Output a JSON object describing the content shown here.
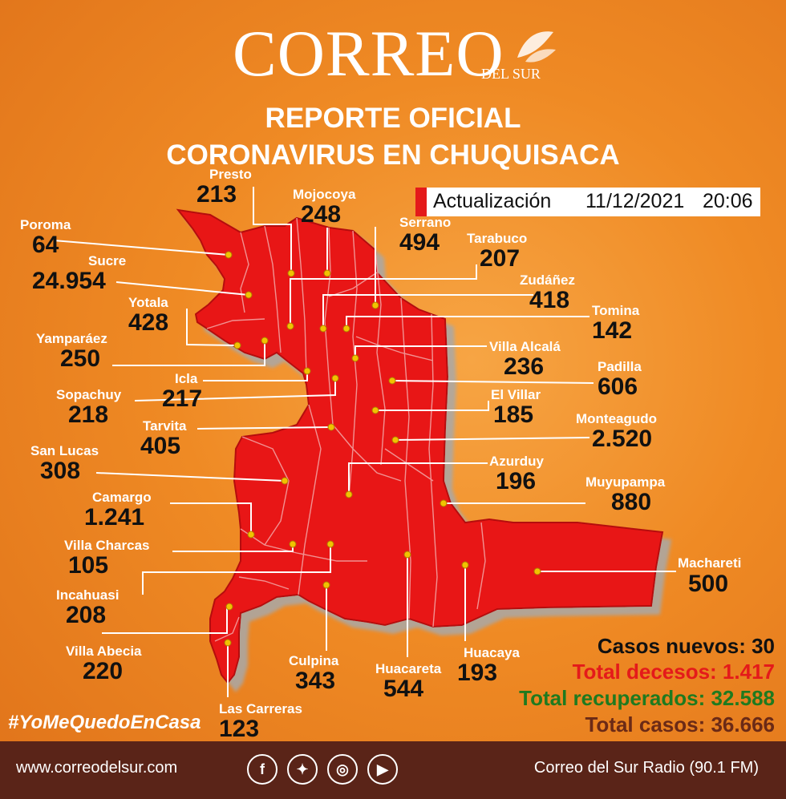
{
  "brand": {
    "name": "CORREO",
    "sub": "DEL SUR"
  },
  "title": {
    "line1": "REPORTE OFICIAL",
    "line2": "CORONAVIRUS EN CHUQUISACA"
  },
  "update": {
    "label": "Actualización",
    "date": "11/12/2021",
    "time": "20:06"
  },
  "colors": {
    "map": "#e81515",
    "map_border": "#b50e0e",
    "background": "#ef8a24",
    "footer": "#5a2418"
  },
  "municipalities": [
    {
      "name": "Presto",
      "value": "213"
    },
    {
      "name": "Mojocoya",
      "value": "248"
    },
    {
      "name": "Serrano",
      "value": "494"
    },
    {
      "name": "Tarabuco",
      "value": "207"
    },
    {
      "name": "Poroma",
      "value": "64"
    },
    {
      "name": "Sucre",
      "value": "24.954"
    },
    {
      "name": "Zudáñez",
      "value": "418"
    },
    {
      "name": "Yotala",
      "value": "428"
    },
    {
      "name": "Tomina",
      "value": "142"
    },
    {
      "name": "Yamparáez",
      "value": "250"
    },
    {
      "name": "Villa Alcalá",
      "value": "236"
    },
    {
      "name": "Padilla",
      "value": "606"
    },
    {
      "name": "Icla",
      "value": "217"
    },
    {
      "name": "Sopachuy",
      "value": "218"
    },
    {
      "name": "El Villar",
      "value": "185"
    },
    {
      "name": "Tarvita",
      "value": "405"
    },
    {
      "name": "Monteagudo",
      "value": "2.520"
    },
    {
      "name": "San Lucas",
      "value": "308"
    },
    {
      "name": "Azurduy",
      "value": "196"
    },
    {
      "name": "Muyupampa",
      "value": "880"
    },
    {
      "name": "Camargo",
      "value": "1.241"
    },
    {
      "name": "Villa Charcas",
      "value": "105"
    },
    {
      "name": "Machareti",
      "value": "500"
    },
    {
      "name": "Incahuasi",
      "value": "208"
    },
    {
      "name": "Villa Abecia",
      "value": "220"
    },
    {
      "name": "Culpina",
      "value": "343"
    },
    {
      "name": "Huacareta",
      "value": "544"
    },
    {
      "name": "Huacaya",
      "value": "193"
    },
    {
      "name": "Las Carreras",
      "value": "123"
    }
  ],
  "summary": {
    "new_cases": "Casos nuevos: 30",
    "deaths": "Total decesos: 1.417",
    "recovered": "Total recuperados: 32.588",
    "total": "Total casos: 36.666",
    "colors": {
      "new_cases": "#111111",
      "deaths": "#e41a1a",
      "recovered": "#1f7a1f",
      "total": "#6b2a16"
    }
  },
  "hashtag": "#YoMeQuedoEnCasa",
  "footer": {
    "url": "www.correodelsur.com",
    "radio": "Correo del Sur Radio (90.1 FM)",
    "social": [
      {
        "icon": "facebook-icon",
        "glyph": "f"
      },
      {
        "icon": "twitter-icon",
        "glyph": "✦"
      },
      {
        "icon": "instagram-icon",
        "glyph": "◎"
      },
      {
        "icon": "youtube-icon",
        "glyph": "▶"
      }
    ]
  }
}
